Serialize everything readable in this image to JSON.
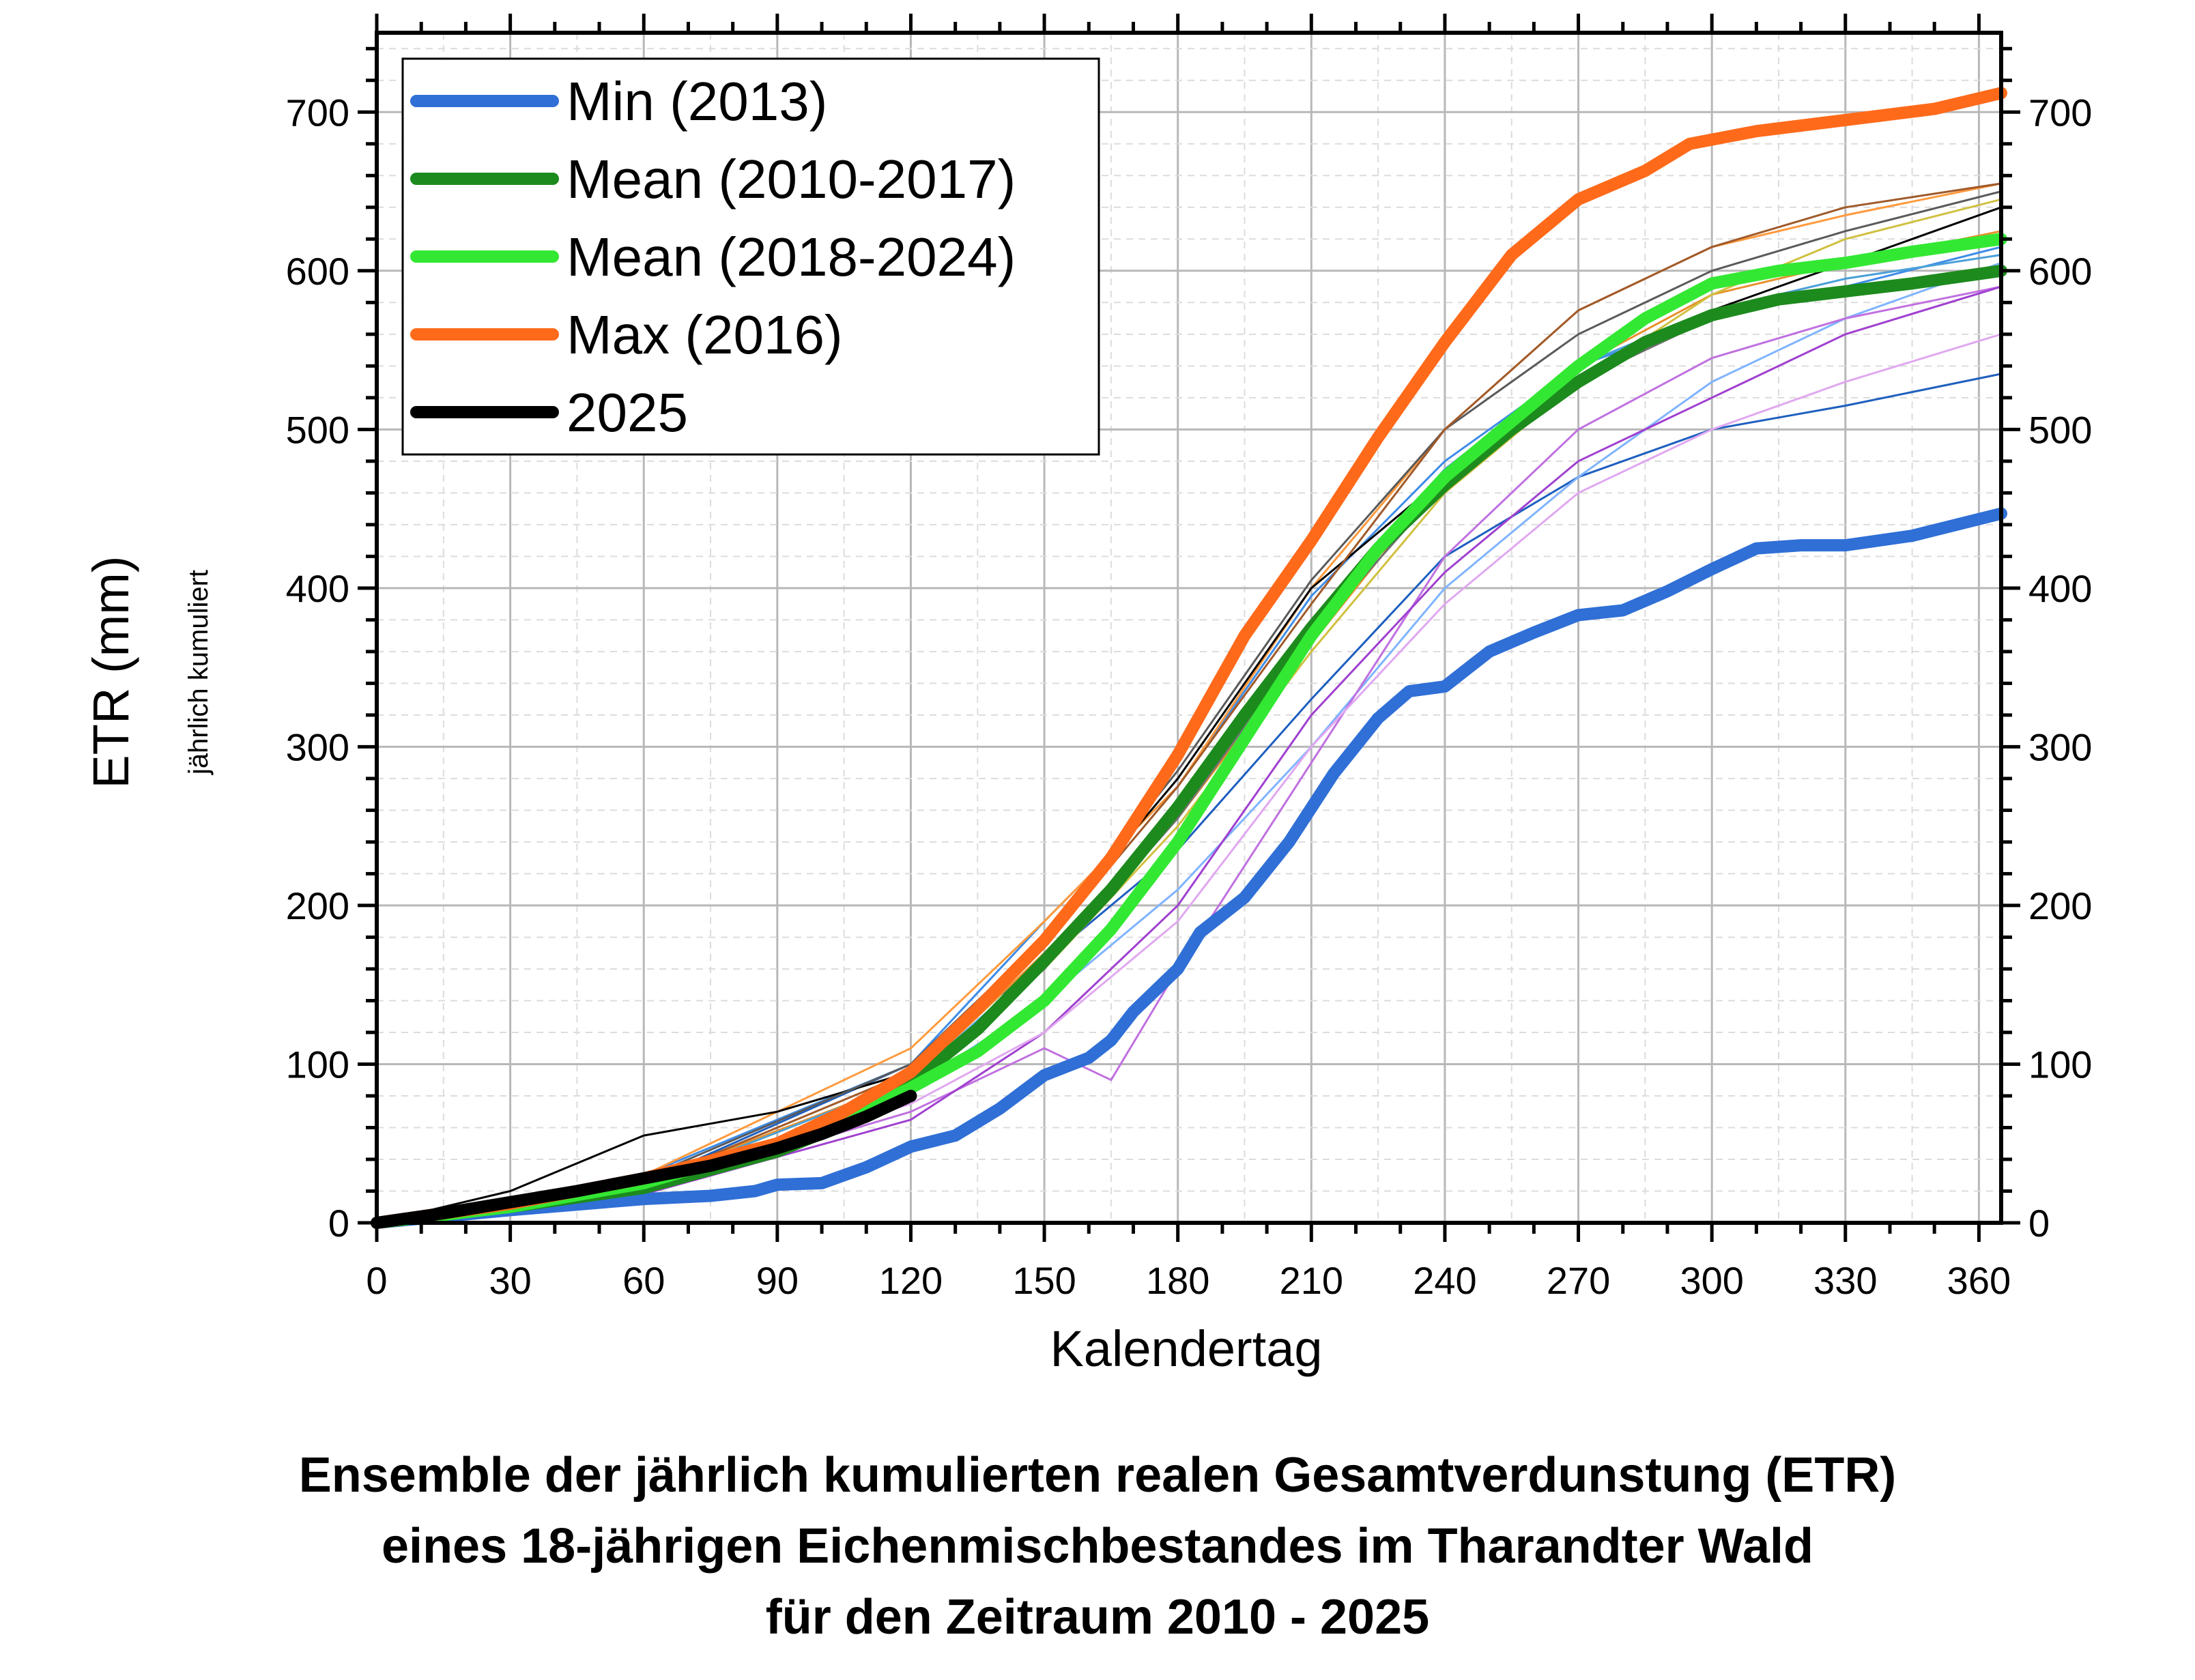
{
  "caption": {
    "line1": "Ensemble der jährlich kumulierten realen Gesamtverdunstung (ETR)",
    "line2": "eines 18-jährigen Eichenmischbestandes im Tharandter Wald",
    "line3": "für den Zeitraum 2010 - 2025"
  },
  "chart_data": {
    "type": "line",
    "title": "",
    "xlabel": "Kalendertag",
    "ylabel": "ETR (mm)",
    "ylabel_sub": "jährlich kumuliert",
    "xlim": [
      0,
      365
    ],
    "ylim": [
      0,
      750
    ],
    "xticks": [
      0,
      30,
      60,
      90,
      120,
      150,
      180,
      210,
      240,
      270,
      300,
      330,
      360
    ],
    "yticks": [
      0,
      100,
      200,
      300,
      400,
      500,
      600,
      700
    ],
    "right_axis": true,
    "grid": true,
    "legend_position": "top-left",
    "series": [
      {
        "name": "Min (2013)",
        "color": "#2f6fd6",
        "width": "thick",
        "points": [
          [
            0,
            0
          ],
          [
            30,
            8
          ],
          [
            60,
            15
          ],
          [
            75,
            17
          ],
          [
            85,
            20
          ],
          [
            90,
            24
          ],
          [
            100,
            25
          ],
          [
            110,
            35
          ],
          [
            120,
            48
          ],
          [
            130,
            55
          ],
          [
            140,
            72
          ],
          [
            150,
            93
          ],
          [
            160,
            104
          ],
          [
            165,
            115
          ],
          [
            170,
            133
          ],
          [
            180,
            160
          ],
          [
            185,
            183
          ],
          [
            195,
            205
          ],
          [
            205,
            240
          ],
          [
            215,
            283
          ],
          [
            225,
            318
          ],
          [
            232,
            335
          ],
          [
            240,
            338
          ],
          [
            250,
            360
          ],
          [
            260,
            372
          ],
          [
            270,
            383
          ],
          [
            280,
            386
          ],
          [
            290,
            398
          ],
          [
            300,
            412
          ],
          [
            310,
            425
          ],
          [
            320,
            427
          ],
          [
            330,
            427
          ],
          [
            345,
            433
          ],
          [
            365,
            447
          ]
        ]
      },
      {
        "name": "Mean (2010-2017)",
        "color": "#1d8a1d",
        "width": "thick",
        "points": [
          [
            0,
            0
          ],
          [
            30,
            10
          ],
          [
            60,
            22
          ],
          [
            90,
            45
          ],
          [
            105,
            62
          ],
          [
            120,
            88
          ],
          [
            135,
            122
          ],
          [
            150,
            165
          ],
          [
            165,
            210
          ],
          [
            180,
            262
          ],
          [
            195,
            320
          ],
          [
            210,
            375
          ],
          [
            225,
            425
          ],
          [
            240,
            465
          ],
          [
            255,
            500
          ],
          [
            270,
            530
          ],
          [
            285,
            555
          ],
          [
            300,
            572
          ],
          [
            315,
            582
          ],
          [
            330,
            587
          ],
          [
            345,
            592
          ],
          [
            365,
            600
          ]
        ]
      },
      {
        "name": "Mean (2018-2024)",
        "color": "#33e833",
        "width": "thick",
        "points": [
          [
            0,
            0
          ],
          [
            30,
            10
          ],
          [
            60,
            25
          ],
          [
            90,
            50
          ],
          [
            105,
            65
          ],
          [
            120,
            85
          ],
          [
            135,
            108
          ],
          [
            150,
            140
          ],
          [
            165,
            185
          ],
          [
            180,
            240
          ],
          [
            195,
            305
          ],
          [
            210,
            370
          ],
          [
            225,
            425
          ],
          [
            240,
            470
          ],
          [
            255,
            505
          ],
          [
            270,
            540
          ],
          [
            285,
            570
          ],
          [
            300,
            592
          ],
          [
            315,
            600
          ],
          [
            330,
            605
          ],
          [
            345,
            612
          ],
          [
            365,
            620
          ]
        ]
      },
      {
        "name": "Max (2016)",
        "color": "#ff6a1a",
        "width": "thick",
        "points": [
          [
            0,
            0
          ],
          [
            30,
            12
          ],
          [
            60,
            28
          ],
          [
            90,
            50
          ],
          [
            105,
            70
          ],
          [
            120,
            95
          ],
          [
            135,
            135
          ],
          [
            150,
            178
          ],
          [
            165,
            230
          ],
          [
            180,
            295
          ],
          [
            195,
            370
          ],
          [
            210,
            430
          ],
          [
            225,
            495
          ],
          [
            240,
            555
          ],
          [
            255,
            610
          ],
          [
            270,
            645
          ],
          [
            285,
            663
          ],
          [
            295,
            680
          ],
          [
            310,
            688
          ],
          [
            330,
            695
          ],
          [
            350,
            702
          ],
          [
            365,
            712
          ]
        ]
      },
      {
        "name": "2025",
        "color": "#000000",
        "width": "thick",
        "points": [
          [
            0,
            0
          ],
          [
            15,
            6
          ],
          [
            30,
            13
          ],
          [
            45,
            20
          ],
          [
            60,
            28
          ],
          [
            75,
            36
          ],
          [
            90,
            47
          ],
          [
            100,
            56
          ],
          [
            110,
            67
          ],
          [
            120,
            80
          ]
        ]
      }
    ],
    "ensemble_years": [
      {
        "color": "#1e5fbf",
        "points": [
          [
            0,
            0
          ],
          [
            60,
            25
          ],
          [
            120,
            100
          ],
          [
            150,
            165
          ],
          [
            180,
            235
          ],
          [
            210,
            330
          ],
          [
            240,
            420
          ],
          [
            270,
            470
          ],
          [
            300,
            500
          ],
          [
            330,
            515
          ],
          [
            365,
            535
          ]
        ]
      },
      {
        "color": "#3d8ce8",
        "points": [
          [
            0,
            0
          ],
          [
            60,
            30
          ],
          [
            120,
            100
          ],
          [
            150,
            190
          ],
          [
            180,
            275
          ],
          [
            210,
            395
          ],
          [
            240,
            480
          ],
          [
            270,
            540
          ],
          [
            300,
            570
          ],
          [
            330,
            590
          ],
          [
            365,
            615
          ]
        ]
      },
      {
        "color": "#7fb4ff",
        "points": [
          [
            0,
            0
          ],
          [
            60,
            22
          ],
          [
            120,
            85
          ],
          [
            150,
            140
          ],
          [
            180,
            210
          ],
          [
            210,
            300
          ],
          [
            240,
            400
          ],
          [
            270,
            470
          ],
          [
            300,
            530
          ],
          [
            330,
            570
          ],
          [
            365,
            605
          ]
        ]
      },
      {
        "color": "#ff9a3d",
        "points": [
          [
            0,
            0
          ],
          [
            60,
            30
          ],
          [
            120,
            110
          ],
          [
            150,
            190
          ],
          [
            180,
            275
          ],
          [
            210,
            400
          ],
          [
            240,
            500
          ],
          [
            270,
            575
          ],
          [
            300,
            615
          ],
          [
            330,
            635
          ],
          [
            365,
            655
          ]
        ]
      },
      {
        "color": "#e8902a",
        "points": [
          [
            0,
            0
          ],
          [
            60,
            26
          ],
          [
            120,
            90
          ],
          [
            150,
            170
          ],
          [
            180,
            255
          ],
          [
            210,
            365
          ],
          [
            240,
            470
          ],
          [
            270,
            540
          ],
          [
            300,
            585
          ],
          [
            330,
            605
          ],
          [
            365,
            625
          ]
        ]
      },
      {
        "color": "#000000",
        "points": [
          [
            0,
            0
          ],
          [
            30,
            20
          ],
          [
            60,
            55
          ],
          [
            90,
            70
          ],
          [
            120,
            95
          ],
          [
            150,
            180
          ],
          [
            180,
            280
          ],
          [
            210,
            400
          ],
          [
            240,
            470
          ],
          [
            270,
            530
          ],
          [
            300,
            575
          ],
          [
            330,
            605
          ],
          [
            365,
            640
          ]
        ]
      },
      {
        "color": "#5a5a5a",
        "points": [
          [
            0,
            0
          ],
          [
            60,
            28
          ],
          [
            120,
            100
          ],
          [
            150,
            180
          ],
          [
            180,
            285
          ],
          [
            210,
            405
          ],
          [
            240,
            500
          ],
          [
            270,
            560
          ],
          [
            300,
            600
          ],
          [
            330,
            625
          ],
          [
            365,
            650
          ]
        ]
      },
      {
        "color": "#a05a2a",
        "points": [
          [
            0,
            0
          ],
          [
            60,
            25
          ],
          [
            120,
            95
          ],
          [
            150,
            175
          ],
          [
            180,
            275
          ],
          [
            210,
            390
          ],
          [
            240,
            500
          ],
          [
            270,
            575
          ],
          [
            300,
            615
          ],
          [
            330,
            640
          ],
          [
            365,
            655
          ]
        ]
      },
      {
        "color": "#c070e0",
        "points": [
          [
            0,
            0
          ],
          [
            60,
            20
          ],
          [
            120,
            70
          ],
          [
            150,
            110
          ],
          [
            165,
            90
          ],
          [
            180,
            160
          ],
          [
            210,
            290
          ],
          [
            240,
            420
          ],
          [
            270,
            500
          ],
          [
            300,
            545
          ],
          [
            330,
            570
          ],
          [
            365,
            590
          ]
        ]
      },
      {
        "color": "#a040d0",
        "points": [
          [
            0,
            0
          ],
          [
            60,
            18
          ],
          [
            120,
            65
          ],
          [
            150,
            120
          ],
          [
            180,
            200
          ],
          [
            210,
            320
          ],
          [
            240,
            410
          ],
          [
            270,
            480
          ],
          [
            300,
            520
          ],
          [
            330,
            560
          ],
          [
            365,
            590
          ]
        ]
      },
      {
        "color": "#e0a8f0",
        "points": [
          [
            0,
            0
          ],
          [
            60,
            22
          ],
          [
            120,
            75
          ],
          [
            150,
            120
          ],
          [
            180,
            190
          ],
          [
            210,
            300
          ],
          [
            240,
            390
          ],
          [
            270,
            460
          ],
          [
            300,
            500
          ],
          [
            330,
            530
          ],
          [
            365,
            560
          ]
        ]
      },
      {
        "color": "#d0c040",
        "points": [
          [
            0,
            0
          ],
          [
            60,
            24
          ],
          [
            120,
            90
          ],
          [
            150,
            160
          ],
          [
            180,
            250
          ],
          [
            210,
            360
          ],
          [
            240,
            460
          ],
          [
            270,
            530
          ],
          [
            300,
            585
          ],
          [
            330,
            620
          ],
          [
            365,
            645
          ]
        ]
      },
      {
        "color": "#707070",
        "points": [
          [
            0,
            0
          ],
          [
            60,
            22
          ],
          [
            120,
            85
          ],
          [
            150,
            160
          ],
          [
            180,
            255
          ],
          [
            210,
            370
          ],
          [
            240,
            465
          ],
          [
            270,
            530
          ],
          [
            300,
            570
          ],
          [
            330,
            590
          ],
          [
            365,
            600
          ]
        ]
      },
      {
        "color": "#4aa0d8",
        "points": [
          [
            0,
            0
          ],
          [
            60,
            24
          ],
          [
            120,
            90
          ],
          [
            150,
            165
          ],
          [
            180,
            260
          ],
          [
            210,
            380
          ],
          [
            240,
            475
          ],
          [
            270,
            540
          ],
          [
            300,
            575
          ],
          [
            330,
            595
          ],
          [
            365,
            610
          ]
        ]
      }
    ]
  }
}
